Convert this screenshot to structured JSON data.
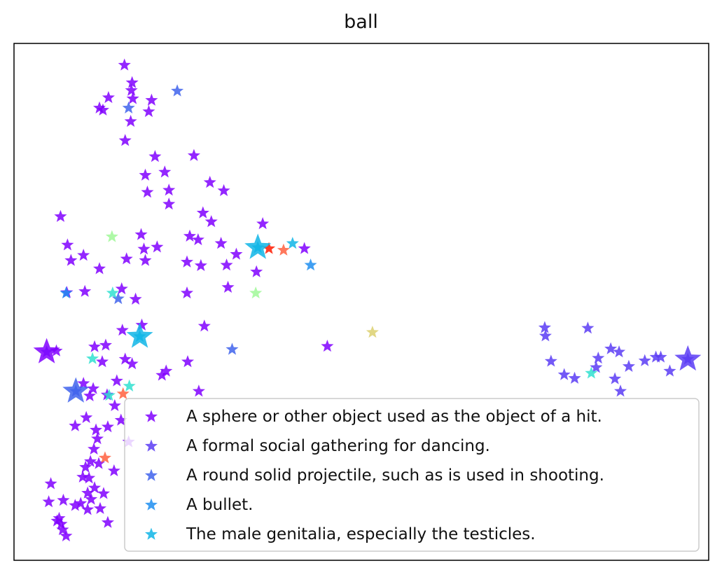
{
  "chart_data": {
    "type": "scatter",
    "title": "ball",
    "xlabel": "",
    "ylabel": "",
    "xlim": [
      0,
      100
    ],
    "ylim": [
      0,
      100
    ],
    "ticks_visible": false,
    "grid": false,
    "legend_placement": "lower-right",
    "marker": "star",
    "legend": [
      {
        "label": "A sphere or other object used as the object of a hit.",
        "color": "#8000ff"
      },
      {
        "label": "A formal social gathering for dancing.",
        "color": "#5a3cf5"
      },
      {
        "label": "A round solid projectile, such as is used in shooting.",
        "color": "#3f63ec"
      },
      {
        "label": "A bullet.",
        "color": "#1f8ef0"
      },
      {
        "label": "The male genitalia, especially the testicles.",
        "color": "#0fb5e6"
      }
    ],
    "series": [
      {
        "name": "A sphere or other object used as the object of a hit.",
        "color": "#8000ff",
        "points": [
          [
            15.9,
            95.8
          ],
          [
            17.0,
            92.4
          ],
          [
            16.9,
            90.9
          ],
          [
            13.6,
            89.5
          ],
          [
            12.3,
            87.5
          ],
          [
            12.8,
            87.1
          ],
          [
            17.1,
            89.3
          ],
          [
            19.8,
            89.0
          ],
          [
            19.4,
            86.8
          ],
          [
            16.8,
            84.9
          ],
          [
            16.0,
            81.2
          ],
          [
            20.3,
            78.1
          ],
          [
            25.9,
            78.3
          ],
          [
            18.9,
            74.5
          ],
          [
            21.7,
            75.1
          ],
          [
            28.2,
            73.1
          ],
          [
            19.2,
            71.2
          ],
          [
            22.3,
            71.6
          ],
          [
            30.2,
            71.5
          ],
          [
            22.3,
            68.9
          ],
          [
            27.2,
            67.2
          ],
          [
            6.7,
            66.5
          ],
          [
            28.4,
            65.5
          ],
          [
            35.8,
            65.1
          ],
          [
            18.3,
            63.0
          ],
          [
            25.3,
            62.7
          ],
          [
            26.5,
            62.0
          ],
          [
            7.7,
            61.0
          ],
          [
            18.7,
            60.2
          ],
          [
            20.6,
            60.6
          ],
          [
            29.8,
            61.3
          ],
          [
            10.0,
            59.0
          ],
          [
            8.2,
            58.0
          ],
          [
            16.2,
            58.3
          ],
          [
            18.9,
            58.0
          ],
          [
            24.9,
            57.7
          ],
          [
            26.9,
            57.0
          ],
          [
            30.6,
            57.1
          ],
          [
            32.0,
            59.2
          ],
          [
            41.8,
            60.3
          ],
          [
            12.3,
            56.4
          ],
          [
            34.9,
            55.8
          ],
          [
            30.8,
            52.8
          ],
          [
            15.5,
            52.5
          ],
          [
            24.9,
            51.7
          ],
          [
            10.2,
            52.0
          ],
          [
            17.5,
            50.5
          ],
          [
            7.6,
            51.8
          ],
          [
            18.4,
            45.5
          ],
          [
            27.4,
            45.3
          ],
          [
            15.6,
            44.5
          ],
          [
            11.6,
            41.3
          ],
          [
            13.2,
            41.6
          ],
          [
            45.1,
            41.4
          ],
          [
            6.1,
            40.5
          ],
          [
            16.0,
            38.9
          ],
          [
            25.0,
            38.4
          ],
          [
            12.7,
            38.4
          ],
          [
            17.0,
            38.0
          ],
          [
            21.9,
            36.6
          ],
          [
            21.3,
            35.8
          ],
          [
            14.8,
            34.7
          ],
          [
            10.0,
            34.2
          ],
          [
            11.4,
            33.2
          ],
          [
            26.6,
            32.7
          ],
          [
            13.4,
            32.0
          ],
          [
            10.9,
            31.8
          ],
          [
            14.5,
            29.9
          ],
          [
            10.4,
            27.6
          ],
          [
            15.4,
            27.1
          ],
          [
            8.8,
            26.0
          ],
          [
            13.5,
            25.8
          ],
          [
            11.8,
            25.2
          ],
          [
            12.0,
            23.5
          ],
          [
            16.5,
            22.9
          ],
          [
            11.5,
            21.5
          ],
          [
            11.0,
            19.1
          ],
          [
            12.2,
            18.7
          ],
          [
            10.3,
            18.0
          ],
          [
            9.9,
            16.1
          ],
          [
            14.4,
            17.3
          ],
          [
            10.8,
            15.9
          ],
          [
            5.3,
            14.8
          ],
          [
            11.6,
            14.0
          ],
          [
            10.6,
            13.0
          ],
          [
            12.9,
            12.9
          ],
          [
            7.1,
            11.6
          ],
          [
            5.0,
            11.3
          ],
          [
            11.1,
            11.8
          ],
          [
            9.6,
            11.0
          ],
          [
            8.8,
            10.6
          ],
          [
            12.4,
            10.0
          ],
          [
            10.6,
            9.8
          ],
          [
            6.5,
            8.1
          ],
          [
            6.2,
            7.6
          ],
          [
            13.5,
            7.3
          ],
          [
            6.8,
            7.0
          ],
          [
            7.0,
            5.9
          ],
          [
            7.5,
            4.7
          ]
        ]
      },
      {
        "name": "A formal social gathering for dancing.",
        "color": "#5a3cf5",
        "points": [
          [
            4.7,
            40.3
          ],
          [
            76.4,
            45.0
          ],
          [
            76.5,
            43.4
          ],
          [
            82.6,
            44.9
          ],
          [
            85.9,
            40.9
          ],
          [
            87.1,
            40.3
          ],
          [
            84.1,
            39.1
          ],
          [
            92.4,
            39.3
          ],
          [
            93.1,
            39.3
          ],
          [
            97.0,
            38.9
          ],
          [
            90.8,
            38.6
          ],
          [
            77.3,
            38.5
          ],
          [
            88.5,
            37.5
          ],
          [
            83.8,
            37.3
          ],
          [
            94.4,
            36.6
          ],
          [
            79.2,
            35.9
          ],
          [
            80.7,
            35.2
          ],
          [
            86.5,
            35.1
          ],
          [
            87.3,
            32.7
          ]
        ]
      },
      {
        "name": "A round solid projectile, such as is used in shooting.",
        "color": "#3f63ec",
        "points": [
          [
            23.5,
            90.8
          ],
          [
            16.5,
            87.5
          ],
          [
            31.4,
            40.8
          ],
          [
            8.9,
            32.7
          ],
          [
            15.0,
            50.6
          ]
        ]
      },
      {
        "name": "A bullet.",
        "color": "#1f8ef0",
        "points": [
          [
            42.7,
            57.1
          ],
          [
            7.5,
            51.7
          ]
        ]
      },
      {
        "name": "The male genitalia, especially the testicles.",
        "color": "#0fb5e6",
        "points": [
          [
            35.1,
            60.5
          ],
          [
            18.1,
            43.3
          ],
          [
            40.1,
            61.3
          ]
        ]
      },
      {
        "name": "",
        "color": "#30e0d0",
        "points": [
          [
            11.3,
            39.0
          ],
          [
            16.6,
            33.7
          ],
          [
            13.7,
            31.9
          ],
          [
            14.2,
            51.7
          ],
          [
            83.1,
            36.2
          ]
        ]
      },
      {
        "name": "",
        "color": "#a0f898",
        "points": [
          [
            14.1,
            62.6
          ],
          [
            34.8,
            51.7
          ]
        ]
      },
      {
        "name": "",
        "color": "#dcd070",
        "points": [
          [
            51.6,
            44.1
          ]
        ]
      },
      {
        "name": "",
        "color": "#ff6040",
        "points": [
          [
            15.7,
            32.2
          ],
          [
            13.1,
            19.8
          ],
          [
            38.8,
            60.0
          ]
        ]
      },
      {
        "name": "",
        "color": "#ff1a00",
        "points": [
          [
            36.7,
            60.3
          ]
        ]
      }
    ],
    "large_points": [
      {
        "x": 4.7,
        "y": 40.3,
        "color": "#8000ff"
      },
      {
        "x": 97.0,
        "y": 38.9,
        "color": "#5a3cf5"
      },
      {
        "x": 8.9,
        "y": 32.7,
        "color": "#3f63ec"
      },
      {
        "x": 35.1,
        "y": 60.5,
        "color": "#0fb5e6"
      },
      {
        "x": 18.1,
        "y": 43.3,
        "color": "#0fb5e6"
      }
    ]
  }
}
